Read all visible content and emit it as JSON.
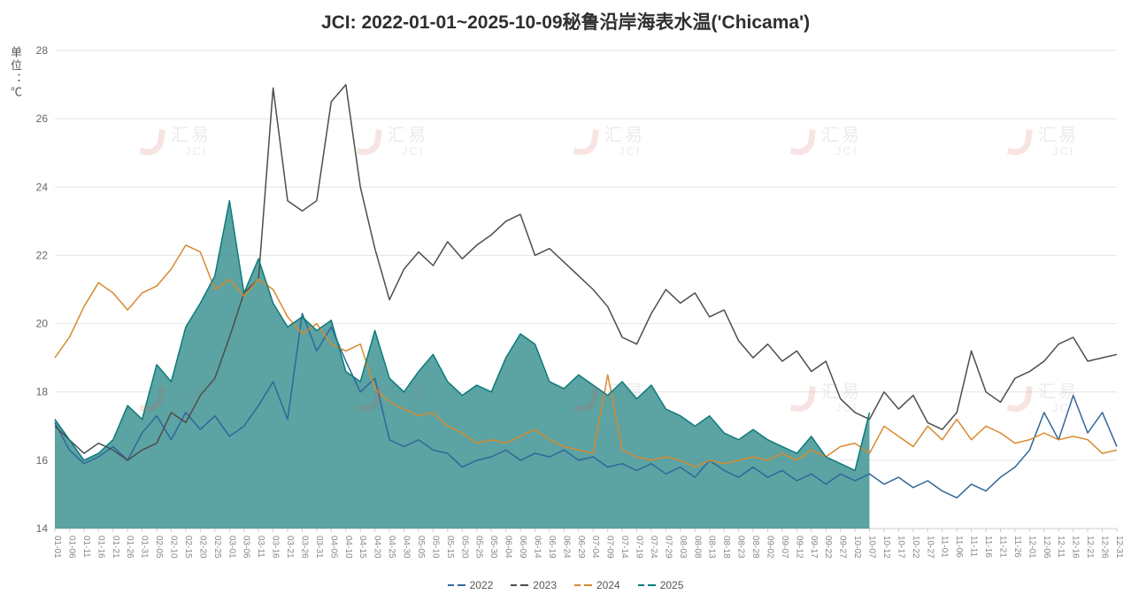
{
  "page": {
    "background": "#ffffff"
  },
  "watermark": {
    "text_cn": "汇易",
    "text_en": "JCI",
    "logo_color": "#cf5f54",
    "text_color": "#8a8a8a"
  },
  "chart_data": {
    "type": "line",
    "title": "JCI: 2022-01-01~2025-10-09秘鲁沿岸海表水温('Chicama')",
    "y_unit_label": "单位：℃",
    "xlabel": "",
    "ylabel": "单位：℃",
    "ylim": [
      14,
      28
    ],
    "y_ticks": [
      14,
      16,
      18,
      20,
      22,
      24,
      26,
      28
    ],
    "grid": true,
    "legend_position": "bottom",
    "x": [
      "01-01",
      "01-06",
      "01-11",
      "01-16",
      "01-21",
      "01-26",
      "01-31",
      "02-05",
      "02-10",
      "02-15",
      "02-20",
      "02-25",
      "03-01",
      "03-06",
      "03-11",
      "03-16",
      "03-21",
      "03-26",
      "03-31",
      "04-05",
      "04-10",
      "04-15",
      "04-20",
      "04-25",
      "04-30",
      "05-05",
      "05-10",
      "05-15",
      "05-20",
      "05-25",
      "05-30",
      "06-04",
      "06-09",
      "06-14",
      "06-19",
      "06-24",
      "06-29",
      "07-04",
      "07-09",
      "07-14",
      "07-19",
      "07-24",
      "07-29",
      "08-03",
      "08-08",
      "08-13",
      "08-18",
      "08-23",
      "08-28",
      "09-02",
      "09-07",
      "09-12",
      "09-17",
      "09-22",
      "09-27",
      "10-02",
      "10-07",
      "10-12",
      "10-17",
      "10-22",
      "10-27",
      "11-01",
      "11-06",
      "11-11",
      "11-16",
      "11-21",
      "11-26",
      "12-01",
      "12-06",
      "12-11",
      "12-16",
      "12-21",
      "12-26",
      "12-31"
    ],
    "series": [
      {
        "name": "2022",
        "color": "#31679b",
        "values": [
          17.1,
          16.3,
          15.9,
          16.1,
          16.4,
          16.0,
          16.8,
          17.3,
          16.6,
          17.4,
          16.9,
          17.3,
          16.7,
          17.0,
          17.6,
          18.3,
          17.2,
          20.3,
          19.2,
          19.9,
          18.9,
          18.0,
          18.4,
          16.6,
          16.4,
          16.6,
          16.3,
          16.2,
          15.8,
          16.0,
          16.1,
          16.3,
          16.0,
          16.2,
          16.1,
          16.3,
          16.0,
          16.1,
          15.8,
          15.9,
          15.7,
          15.9,
          15.6,
          15.8,
          15.5,
          16.0,
          15.7,
          15.5,
          15.8,
          15.5,
          15.7,
          15.4,
          15.6,
          15.3,
          15.6,
          15.4,
          15.6,
          15.3,
          15.5,
          15.2,
          15.4,
          15.1,
          14.9,
          15.3,
          15.1,
          15.5,
          15.8,
          16.3,
          17.4,
          16.6,
          17.9,
          16.8,
          17.4,
          16.4
        ]
      },
      {
        "name": "2023",
        "color": "#4d4d4d",
        "values": [
          17.0,
          16.6,
          16.2,
          16.5,
          16.3,
          16.0,
          16.3,
          16.5,
          17.4,
          17.1,
          17.9,
          18.4,
          19.6,
          20.9,
          21.3,
          26.9,
          23.6,
          23.3,
          23.6,
          26.5,
          27.0,
          24.0,
          22.2,
          20.7,
          21.6,
          22.1,
          21.7,
          22.4,
          21.9,
          22.3,
          22.6,
          23.0,
          23.2,
          22.0,
          22.2,
          21.8,
          21.4,
          21.0,
          20.5,
          19.6,
          19.4,
          20.3,
          21.0,
          20.6,
          20.9,
          20.2,
          20.4,
          19.5,
          19.0,
          19.4,
          18.9,
          19.2,
          18.6,
          18.9,
          17.8,
          17.4,
          17.2,
          18.0,
          17.5,
          17.9,
          17.1,
          16.9,
          17.4,
          19.2,
          18.0,
          17.7,
          18.4,
          18.6,
          18.9,
          19.4,
          19.6,
          18.9,
          19.0,
          19.1
        ]
      },
      {
        "name": "2024",
        "color": "#d78a2e",
        "values": [
          19.0,
          19.6,
          20.5,
          21.2,
          20.9,
          20.4,
          20.9,
          21.1,
          21.6,
          22.3,
          22.1,
          21.0,
          21.3,
          20.8,
          21.3,
          21.0,
          20.2,
          19.7,
          20.0,
          19.4,
          19.2,
          19.4,
          18.1,
          17.7,
          17.5,
          17.3,
          17.4,
          17.0,
          16.8,
          16.5,
          16.6,
          16.5,
          16.7,
          16.9,
          16.6,
          16.4,
          16.3,
          16.2,
          18.5,
          16.3,
          16.1,
          16.0,
          16.1,
          16.0,
          15.8,
          16.0,
          15.9,
          16.0,
          16.1,
          16.0,
          16.2,
          16.0,
          16.3,
          16.1,
          16.4,
          16.5,
          16.2,
          17.0,
          16.7,
          16.4,
          17.0,
          16.6,
          17.2,
          16.6,
          17.0,
          16.8,
          16.5,
          16.6,
          16.8,
          16.6,
          16.7,
          16.6,
          16.2,
          16.3
        ]
      },
      {
        "name": "2025",
        "color": "#0d7b7b",
        "area_fill": "#3f9393",
        "area_opacity": 0.85,
        "values": [
          17.2,
          16.6,
          16.0,
          16.2,
          16.6,
          17.6,
          17.2,
          18.8,
          18.3,
          19.9,
          20.6,
          21.4,
          23.6,
          20.9,
          21.9,
          20.6,
          19.9,
          20.2,
          19.8,
          20.1,
          18.6,
          18.3,
          19.8,
          18.4,
          18.0,
          18.6,
          19.1,
          18.3,
          17.9,
          18.2,
          18.0,
          19.0,
          19.7,
          19.4,
          18.3,
          18.1,
          18.5,
          18.2,
          17.9,
          18.3,
          17.8,
          18.2,
          17.5,
          17.3,
          17.0,
          17.3,
          16.8,
          16.6,
          16.9,
          16.6,
          16.4,
          16.2,
          16.7,
          16.1,
          15.9,
          15.7,
          17.4
        ]
      }
    ]
  }
}
